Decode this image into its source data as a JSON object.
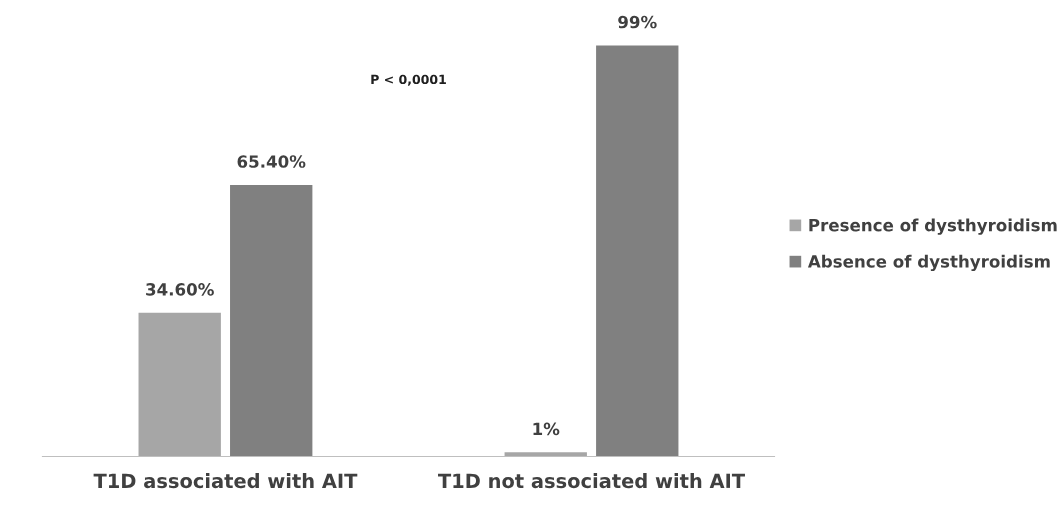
{
  "chart_data": {
    "type": "bar",
    "categories": [
      "T1D associated with AIT",
      "T1D not associated with AIT"
    ],
    "series": [
      {
        "name": "Presence of dysthyroidism",
        "color": "#a6a6a6",
        "values": [
          34.6,
          1
        ],
        "value_labels": [
          "34.60%",
          "1%"
        ]
      },
      {
        "name": "Absence of dysthyroidism",
        "color": "#808080",
        "values": [
          65.4,
          99
        ],
        "value_labels": [
          "65.40%",
          "99%"
        ]
      }
    ],
    "tick_labels": "x",
    "grid": false,
    "legend": "right",
    "annotations": [
      "P < 0,0001"
    ]
  }
}
